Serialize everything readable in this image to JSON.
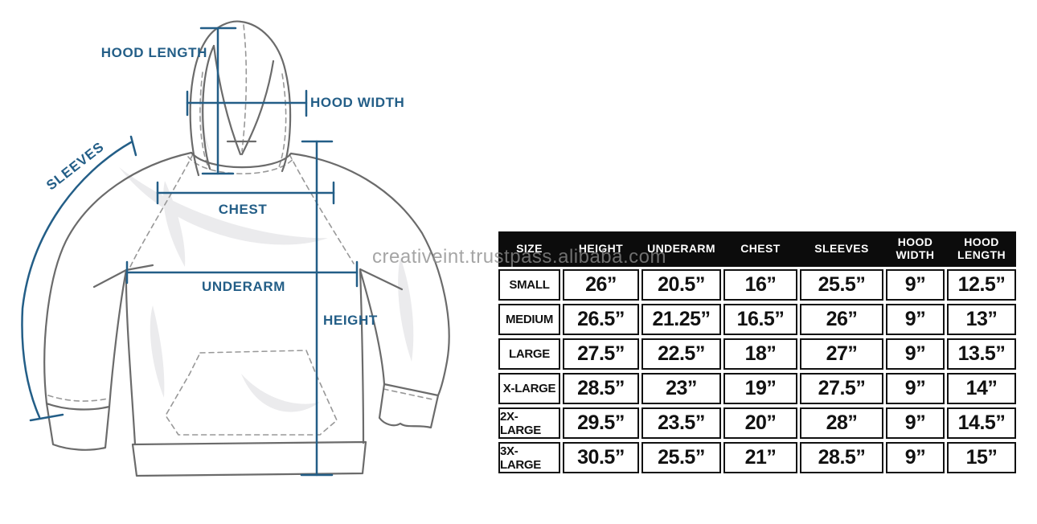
{
  "watermark": {
    "text": "creativeint.trustpass.alibaba.com"
  },
  "diagram": {
    "labels": {
      "hood_length": "HOOD LENGTH",
      "hood_width": "HOOD WIDTH",
      "sleeves": "SLEEVES",
      "chest": "CHEST",
      "underarm": "UNDERARM",
      "height": "HEIGHT"
    },
    "accent_color": "#235e87",
    "outline_color": "#6b6b6b"
  },
  "size_chart": {
    "header_bg": "#0c0c0c",
    "header_text_color": "#ffffff",
    "columns": [
      "SIZE",
      "HEIGHT",
      "UNDERARM",
      "CHEST",
      "SLEEVES",
      "HOOD WIDTH",
      "HOOD LENGTH"
    ],
    "rows": [
      [
        "SMALL",
        "26”",
        "20.5”",
        "16”",
        "25.5”",
        "9”",
        "12.5”"
      ],
      [
        "MEDIUM",
        "26.5”",
        "21.25”",
        "16.5”",
        "26”",
        "9”",
        "13”"
      ],
      [
        "LARGE",
        "27.5”",
        "22.5”",
        "18”",
        "27”",
        "9”",
        "13.5”"
      ],
      [
        "X-LARGE",
        "28.5”",
        "23”",
        "19”",
        "27.5”",
        "9”",
        "14”"
      ],
      [
        "2X-LARGE",
        "29.5”",
        "23.5”",
        "20”",
        "28”",
        "9”",
        "14.5”"
      ],
      [
        "3X-LARGE",
        "30.5”",
        "25.5”",
        "21”",
        "28.5”",
        "9”",
        "15”"
      ]
    ]
  }
}
